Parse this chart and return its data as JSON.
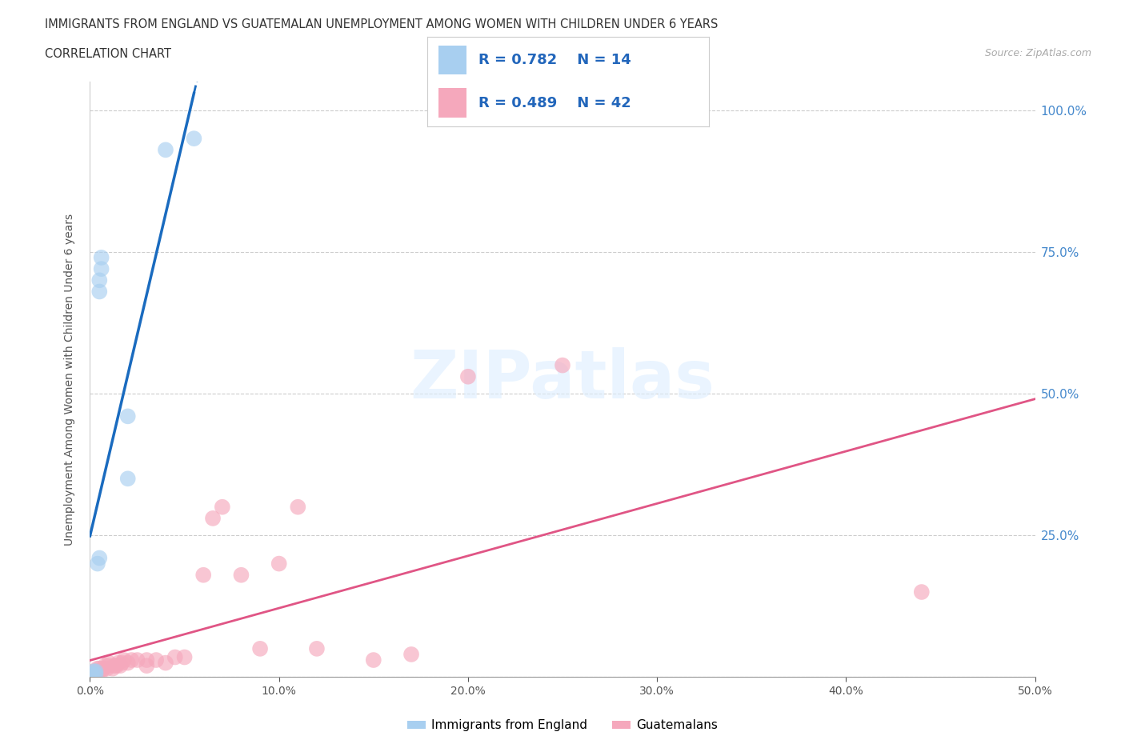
{
  "title_line1": "IMMIGRANTS FROM ENGLAND VS GUATEMALAN UNEMPLOYMENT AMONG WOMEN WITH CHILDREN UNDER 6 YEARS",
  "title_line2": "CORRELATION CHART",
  "source": "Source: ZipAtlas.com",
  "ylabel": "Unemployment Among Women with Children Under 6 years",
  "xlim": [
    0,
    0.5
  ],
  "ylim": [
    0,
    1.05
  ],
  "xtick_vals": [
    0.0,
    0.1,
    0.2,
    0.3,
    0.4,
    0.5
  ],
  "xtick_labels": [
    "0.0%",
    "10.0%",
    "20.0%",
    "30.0%",
    "40.0%",
    "50.0%"
  ],
  "ytick_vals": [
    0.0,
    0.25,
    0.5,
    0.75,
    1.0
  ],
  "ytick_labels_right": [
    "",
    "25.0%",
    "50.0%",
    "75.0%",
    "100.0%"
  ],
  "legend_label1": "Immigrants from England",
  "legend_label2": "Guatemalans",
  "R1": 0.782,
  "N1": 14,
  "R2": 0.489,
  "N2": 42,
  "color_england": "#a8cff0",
  "color_england_line": "#1a6bbf",
  "color_guatemala": "#f5a8bc",
  "color_guatemala_line": "#e05585",
  "blue_x": [
    0.001,
    0.002,
    0.003,
    0.003,
    0.004,
    0.005,
    0.005,
    0.005,
    0.006,
    0.006,
    0.02,
    0.02,
    0.04,
    0.055
  ],
  "blue_y": [
    0.005,
    0.01,
    0.005,
    0.01,
    0.2,
    0.21,
    0.68,
    0.7,
    0.72,
    0.74,
    0.35,
    0.46,
    0.93,
    0.95
  ],
  "pink_x": [
    0.001,
    0.002,
    0.003,
    0.004,
    0.004,
    0.005,
    0.005,
    0.006,
    0.007,
    0.008,
    0.009,
    0.01,
    0.01,
    0.012,
    0.013,
    0.014,
    0.015,
    0.016,
    0.017,
    0.018,
    0.02,
    0.022,
    0.025,
    0.03,
    0.03,
    0.035,
    0.04,
    0.045,
    0.05,
    0.06,
    0.065,
    0.07,
    0.08,
    0.09,
    0.1,
    0.11,
    0.12,
    0.15,
    0.17,
    0.2,
    0.25,
    0.44
  ],
  "pink_y": [
    0.005,
    0.01,
    0.005,
    0.01,
    0.015,
    0.01,
    0.015,
    0.01,
    0.015,
    0.02,
    0.015,
    0.02,
    0.025,
    0.015,
    0.02,
    0.02,
    0.025,
    0.02,
    0.025,
    0.03,
    0.025,
    0.03,
    0.03,
    0.02,
    0.03,
    0.03,
    0.025,
    0.035,
    0.035,
    0.18,
    0.28,
    0.3,
    0.18,
    0.05,
    0.2,
    0.3,
    0.05,
    0.03,
    0.04,
    0.53,
    0.55,
    0.15
  ]
}
